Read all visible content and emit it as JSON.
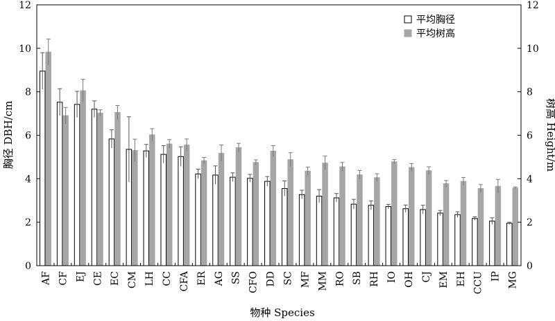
{
  "chart_data": {
    "type": "bar",
    "xlabel": "物种 Species",
    "ylabel_left": "胸径 DBH/cm",
    "ylabel_right": "树高 Height/m",
    "ylim_left": [
      0,
      12
    ],
    "ylim_right": [
      0,
      12
    ],
    "yticks": [
      "0",
      "2",
      "4",
      "6",
      "8",
      "10",
      "12"
    ],
    "legend_position": "top-right",
    "categories": [
      "AF",
      "CF",
      "EJ",
      "CE",
      "EC",
      "CM",
      "LH",
      "CC",
      "CFA",
      "ER",
      "AG",
      "SS",
      "CFO",
      "DD",
      "SC",
      "MF",
      "MM",
      "RO",
      "SB",
      "RH",
      "IO",
      "OH",
      "CJ",
      "EM",
      "EH",
      "CCU",
      "IP",
      "MG"
    ],
    "series": [
      {
        "name": "平均胸径",
        "axis": "left",
        "fill": "#ffffff",
        "stroke": "#000000",
        "values": [
          8.95,
          7.52,
          7.42,
          7.2,
          5.83,
          5.35,
          5.28,
          5.12,
          5.02,
          4.22,
          4.17,
          4.07,
          4.02,
          3.88,
          3.55,
          3.27,
          3.2,
          3.12,
          2.83,
          2.78,
          2.72,
          2.62,
          2.58,
          2.42,
          2.35,
          2.17,
          2.05,
          1.95
        ],
        "errors": [
          0.85,
          0.62,
          0.6,
          0.38,
          0.42,
          1.5,
          0.3,
          0.4,
          0.45,
          0.22,
          0.42,
          0.2,
          0.18,
          0.22,
          0.35,
          0.2,
          0.3,
          0.2,
          0.22,
          0.2,
          0.1,
          0.17,
          0.2,
          0.12,
          0.13,
          0.08,
          0.15,
          0.05
        ]
      },
      {
        "name": "平均树高",
        "axis": "right",
        "fill": "#a6a6a6",
        "stroke": "#a6a6a6",
        "values": [
          9.83,
          6.9,
          8.05,
          7.02,
          7.05,
          5.3,
          6.02,
          5.6,
          5.55,
          4.83,
          5.17,
          5.43,
          4.75,
          5.27,
          4.88,
          4.35,
          4.72,
          4.55,
          4.18,
          4.05,
          4.78,
          4.52,
          4.37,
          3.77,
          3.88,
          3.55,
          3.65,
          3.57
        ],
        "errors": [
          0.6,
          0.38,
          0.52,
          0.15,
          0.32,
          0.52,
          0.28,
          0.2,
          0.28,
          0.15,
          0.38,
          0.2,
          0.12,
          0.25,
          0.32,
          0.18,
          0.32,
          0.2,
          0.2,
          0.18,
          0.1,
          0.18,
          0.18,
          0.15,
          0.18,
          0.18,
          0.32,
          0.05
        ]
      }
    ]
  }
}
